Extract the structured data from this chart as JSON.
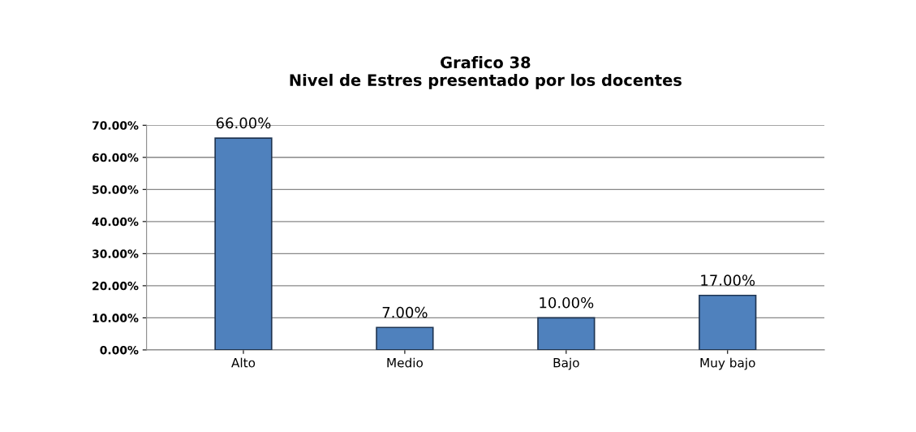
{
  "chart_data": {
    "type": "bar",
    "title": "Grafico 38\nNivel de Estres presentado por los docentes",
    "categories": [
      "Alto",
      "Medio",
      "Bajo",
      "Muy bajo"
    ],
    "values": [
      66,
      7,
      10,
      17
    ],
    "value_labels": [
      "66.00%",
      "7.00%",
      "10.00%",
      "17.00%"
    ],
    "color": "#4f81bd",
    "ylim": [
      0,
      70
    ],
    "yticks": [
      {
        "value": 0,
        "label": "0.00%"
      },
      {
        "value": 10,
        "label": "10.00%"
      },
      {
        "value": 20,
        "label": "20.00%"
      },
      {
        "value": 30,
        "label": "30.00%"
      },
      {
        "value": 40,
        "label": "40.00%"
      },
      {
        "value": 50,
        "label": "50.00%"
      },
      {
        "value": 60,
        "label": "60.00%"
      },
      {
        "value": 70,
        "label": "70.00%"
      }
    ],
    "grid": "y"
  }
}
